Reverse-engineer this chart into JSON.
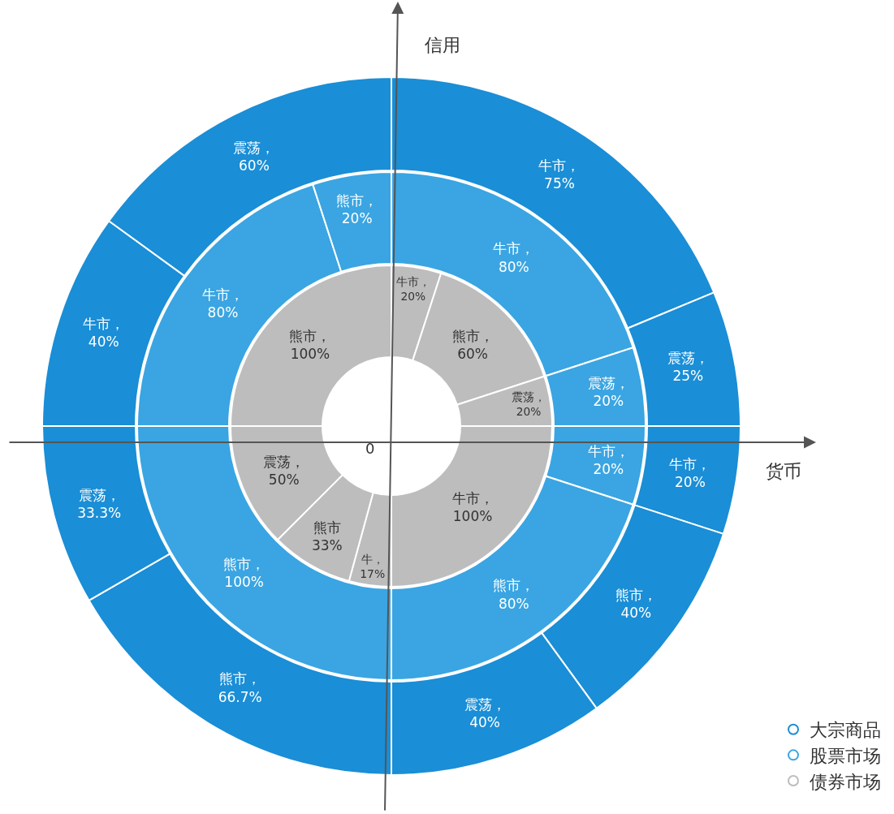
{
  "chart_data": {
    "type": "donut",
    "legend": "bottom right",
    "annotations": [
      "信用",
      "货币",
      "0"
    ],
    "series": [
      {
        "name": "大宗商品",
        "color": "#1a8ed6",
        "values": [
          75,
          25,
          20,
          40,
          40,
          66.7,
          33.3,
          40,
          60
        ],
        "value_labels": [
          "牛市，\n75%",
          "震荡，\n25%",
          "牛市，\n20%",
          "熊市，\n40%",
          "震荡，\n40%",
          "熊市，\n66.7%",
          "震荡，\n33.3%",
          "牛市，\n40%",
          "震荡，\n60%"
        ]
      },
      {
        "name": "股票市场",
        "color": "#3aa5e2",
        "values": [
          80,
          20,
          20,
          80,
          100,
          80,
          20
        ],
        "value_labels": [
          "牛市，\n80%",
          "震荡，\n20%",
          "牛市，\n20%",
          "熊市，\n80%",
          "熊市，\n100%",
          "牛市，\n80%",
          "熊市，\n20%"
        ]
      },
      {
        "name": "债券市场",
        "color": "#bdbdbd",
        "values": [
          20,
          60,
          20,
          100,
          17,
          33,
          50,
          100
        ],
        "value_labels": [
          "牛市，\n20%",
          "熊市，\n60%",
          "震荡，\n20%",
          "牛市，\n100%",
          "牛，\n17%",
          "熊市\n33%",
          "震荡，\n50%",
          "熊市，\n100%"
        ]
      }
    ]
  }
}
